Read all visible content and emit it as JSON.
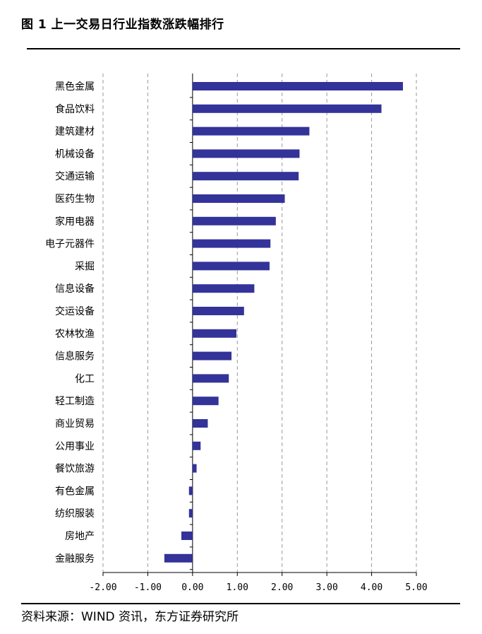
{
  "header": {
    "title": "图 1  上一交易日行业指数涨跌幅排行"
  },
  "footer": {
    "source": "资料来源：WIND 资讯，东方证券研究所"
  },
  "colors": {
    "bar": "#333399",
    "grid": "#999999",
    "axis": "#000000"
  },
  "chart_data": {
    "type": "bar",
    "orientation": "horizontal",
    "title": "",
    "xlabel": "",
    "ylabel": "",
    "xlim": [
      -2,
      5
    ],
    "grid": "vertical-dashed",
    "tick_labels": [
      "-2.00",
      "-1.00",
      "0.00",
      "1.00",
      "2.00",
      "3.00",
      "4.00",
      "5.00"
    ],
    "tick_values": [
      -2,
      -1,
      0,
      1,
      2,
      3,
      4,
      5
    ],
    "categories": [
      "黑色金属",
      "食品饮料",
      "建筑建材",
      "机械设备",
      "交通运输",
      "医药生物",
      "家用电器",
      "电子元器件",
      "采掘",
      "信息设备",
      "交运设备",
      "农林牧渔",
      "信息服务",
      "化工",
      "轻工制造",
      "商业贸易",
      "公用事业",
      "餐饮旅游",
      "有色金属",
      "纺织服装",
      "房地产",
      "金融服务"
    ],
    "values": [
      4.7,
      4.22,
      2.61,
      2.39,
      2.37,
      2.06,
      1.86,
      1.74,
      1.72,
      1.38,
      1.15,
      0.98,
      0.87,
      0.81,
      0.58,
      0.34,
      0.18,
      0.09,
      -0.08,
      -0.08,
      -0.25,
      -0.63
    ]
  }
}
